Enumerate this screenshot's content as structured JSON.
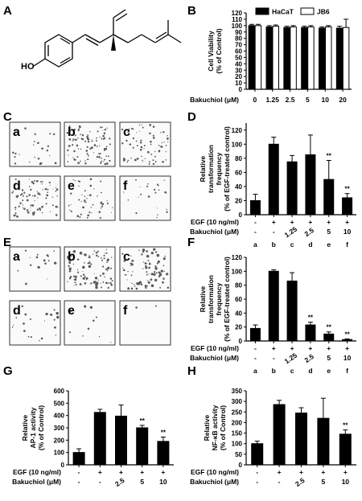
{
  "panels": {
    "A": {
      "letter": "A",
      "ho_label": "HO"
    },
    "B": {
      "letter": "B"
    },
    "C": {
      "letter": "C",
      "wells": [
        "a",
        "b",
        "c",
        "d",
        "e",
        "f"
      ]
    },
    "D": {
      "letter": "D"
    },
    "E": {
      "letter": "E",
      "wells": [
        "a",
        "b",
        "c",
        "d",
        "e",
        "f"
      ]
    },
    "F": {
      "letter": "F"
    },
    "G": {
      "letter": "G"
    },
    "H": {
      "letter": "H"
    }
  },
  "chart_data": [
    {
      "panel": "B",
      "type": "bar",
      "ylabel_lines": [
        "Cell Viability",
        "(% of Control)"
      ],
      "ylim": [
        0,
        120
      ],
      "yticks": [
        0,
        10,
        20,
        30,
        40,
        50,
        60,
        70,
        80,
        90,
        100,
        110,
        120
      ],
      "row_labels": [
        "Bakuchiol (μM)"
      ],
      "categories": [
        "0",
        "1.25",
        "2.5",
        "5",
        "10",
        "20"
      ],
      "legend": [
        "HaCaT",
        "JB6"
      ],
      "series": [
        {
          "name": "HaCaT",
          "color": "#000000",
          "values": [
            100,
            98,
            97,
            97,
            96,
            96
          ],
          "err": [
            2,
            2,
            2,
            2,
            2,
            3
          ]
        },
        {
          "name": "JB6",
          "color": "#ffffff",
          "values": [
            100,
            99,
            98,
            98,
            98,
            97
          ],
          "err": [
            2,
            2,
            2,
            2,
            2,
            13
          ]
        }
      ]
    },
    {
      "panel": "D",
      "type": "bar",
      "ylabel_lines": [
        "Relative",
        "transformation",
        "frequency",
        "(% of EGF-treated control)"
      ],
      "ylim": [
        0,
        130
      ],
      "yticks": [
        0,
        20,
        40,
        60,
        80,
        100,
        120
      ],
      "row_labels": [
        "EGF (10 ng/ml)",
        "Bakuchiol (μM)"
      ],
      "rows": [
        [
          "-",
          "+",
          "+",
          "+",
          "+",
          "+"
        ],
        [
          "-",
          "-",
          "1.25",
          "2.5",
          "5",
          "10"
        ]
      ],
      "categories": [
        "a",
        "b",
        "c",
        "d",
        "e",
        "f"
      ],
      "series": [
        {
          "values": [
            20,
            100,
            75,
            85,
            50,
            24
          ],
          "err": [
            9,
            10,
            9,
            28,
            27,
            6
          ],
          "color": "#000000"
        }
      ],
      "annotations": [
        "",
        "",
        "",
        "",
        "**",
        "**"
      ]
    },
    {
      "panel": "F",
      "type": "bar",
      "ylabel_lines": [
        "Relative",
        "transformation",
        "frequency",
        "(% of EGF-treated control)"
      ],
      "ylim": [
        0,
        120
      ],
      "yticks": [
        0,
        20,
        40,
        60,
        80,
        100,
        120
      ],
      "row_labels": [
        "EGF (10 ng/ml)",
        "Bakuchiol (μM)"
      ],
      "rows": [
        [
          "-",
          "+",
          "+",
          "+",
          "+",
          "+"
        ],
        [
          "-",
          "-",
          "1.25",
          "2.5",
          "5",
          "10"
        ]
      ],
      "categories": [
        "a",
        "b",
        "c",
        "d",
        "e",
        "f"
      ],
      "series": [
        {
          "values": [
            18,
            100,
            86,
            23,
            10,
            2
          ],
          "err": [
            5,
            2,
            12,
            4,
            3,
            1
          ],
          "color": "#000000"
        }
      ],
      "annotations": [
        "",
        "",
        "",
        "**",
        "**",
        "**"
      ]
    },
    {
      "panel": "G",
      "type": "bar",
      "ylabel_lines": [
        "Relative",
        "AP-1 activity",
        "(% of Control)"
      ],
      "ylim": [
        0,
        600
      ],
      "yticks": [
        0,
        100,
        200,
        300,
        400,
        500,
        600
      ],
      "row_labels": [
        "EGF (10 ng/ml)",
        "Bakuchiol (μM)"
      ],
      "rows": [
        [
          "-",
          "+",
          "+",
          "+",
          "+"
        ],
        [
          "-",
          "-",
          "2.5",
          "5",
          "10"
        ]
      ],
      "series": [
        {
          "values": [
            100,
            425,
            395,
            300,
            190
          ],
          "err": [
            30,
            25,
            90,
            20,
            35
          ],
          "color": "#000000"
        }
      ],
      "annotations": [
        "",
        "",
        "",
        "**",
        "**"
      ]
    },
    {
      "panel": "H",
      "type": "bar",
      "ylabel_lines": [
        "Relative",
        "NF-κB activity",
        "(% of Control)"
      ],
      "ylim": [
        0,
        350
      ],
      "yticks": [
        0,
        50,
        100,
        150,
        200,
        250,
        300,
        350
      ],
      "row_labels": [
        "EGF (10 ng/ml)",
        "Bakuchiol (μM)"
      ],
      "rows": [
        [
          "-",
          "+",
          "+",
          "+",
          "+"
        ],
        [
          "-",
          "-",
          "2.5",
          "5",
          "10"
        ]
      ],
      "series": [
        {
          "values": [
            100,
            285,
            245,
            220,
            145
          ],
          "err": [
            12,
            20,
            25,
            95,
            20
          ],
          "color": "#000000"
        }
      ],
      "annotations": [
        "",
        "",
        "",
        "",
        "**"
      ]
    }
  ]
}
